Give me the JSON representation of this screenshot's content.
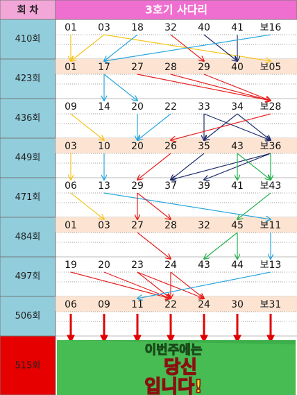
{
  "header": {
    "round_label": "회 차",
    "title": "3호기 사다리"
  },
  "rows": [
    {
      "round": "410회",
      "numbers": [
        "01",
        "03",
        "18",
        "32",
        "40",
        "41",
        "보16"
      ]
    },
    {
      "round": "423회",
      "numbers": [
        "01",
        "17",
        "27",
        "28",
        "29",
        "40",
        "보05"
      ]
    },
    {
      "round": "436회",
      "numbers": [
        "09",
        "14",
        "20",
        "22",
        "33",
        "34",
        "보28"
      ]
    },
    {
      "round": "449회",
      "numbers": [
        "03",
        "10",
        "20",
        "26",
        "35",
        "43",
        "보36"
      ]
    },
    {
      "round": "471회",
      "numbers": [
        "06",
        "13",
        "29",
        "37",
        "39",
        "41",
        "보43"
      ]
    },
    {
      "round": "484회",
      "numbers": [
        "01",
        "03",
        "27",
        "28",
        "32",
        "45",
        "보11"
      ]
    },
    {
      "round": "497회",
      "numbers": [
        "19",
        "20",
        "23",
        "24",
        "43",
        "44",
        "보13"
      ]
    },
    {
      "round": "506회",
      "numbers": [
        "06",
        "09",
        "11",
        "22",
        "24",
        "30",
        "보31"
      ]
    }
  ],
  "next_round": "515회",
  "banner": [
    "이번주에는",
    "당신",
    "입니다!"
  ]
}
